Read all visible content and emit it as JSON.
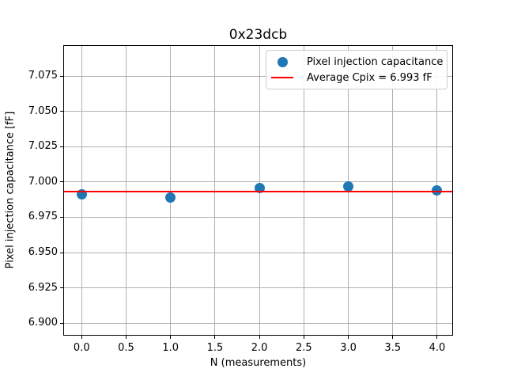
{
  "chart_data": {
    "type": "scatter",
    "title": "0x23dcb",
    "xlabel": "N (measurements)",
    "ylabel": "Pixel injection capacitance [fF]",
    "series": [
      {
        "name": "Pixel injection capacitance",
        "x": [
          0.0,
          1.0,
          2.0,
          3.0,
          4.0
        ],
        "y": [
          6.991,
          6.989,
          6.996,
          6.997,
          6.994
        ],
        "marker": "circle",
        "color": "#1f77b4"
      }
    ],
    "average_line": {
      "value": 6.993,
      "label": "Average Cpix = 6.993 fF",
      "color": "#ff0000"
    },
    "xlim": [
      -0.207,
      4.178
    ],
    "ylim": [
      6.8912,
      7.0969
    ],
    "xticks": [
      0.0,
      0.5,
      1.0,
      1.5,
      2.0,
      2.5,
      3.0,
      3.5,
      4.0
    ],
    "xtick_labels": [
      "0.0",
      "0.5",
      "1.0",
      "1.5",
      "2.0",
      "2.5",
      "3.0",
      "3.5",
      "4.0"
    ],
    "yticks": [
      6.9,
      6.925,
      6.95,
      6.975,
      7.0,
      7.025,
      7.05,
      7.075
    ],
    "ytick_labels": [
      "6.900",
      "6.925",
      "6.950",
      "6.975",
      "7.000",
      "7.025",
      "7.050",
      "7.075"
    ],
    "grid": true,
    "grid_color": "#b0b0b0",
    "axis_color": "#000000",
    "background_color": "#ffffff",
    "legend": {
      "position": "upper right",
      "entries": [
        {
          "label": "Pixel injection capacitance",
          "marker": "dot",
          "color": "#1f77b4"
        },
        {
          "label": "Average Cpix = 6.993 fF",
          "marker": "line",
          "color": "#ff0000"
        }
      ]
    }
  }
}
